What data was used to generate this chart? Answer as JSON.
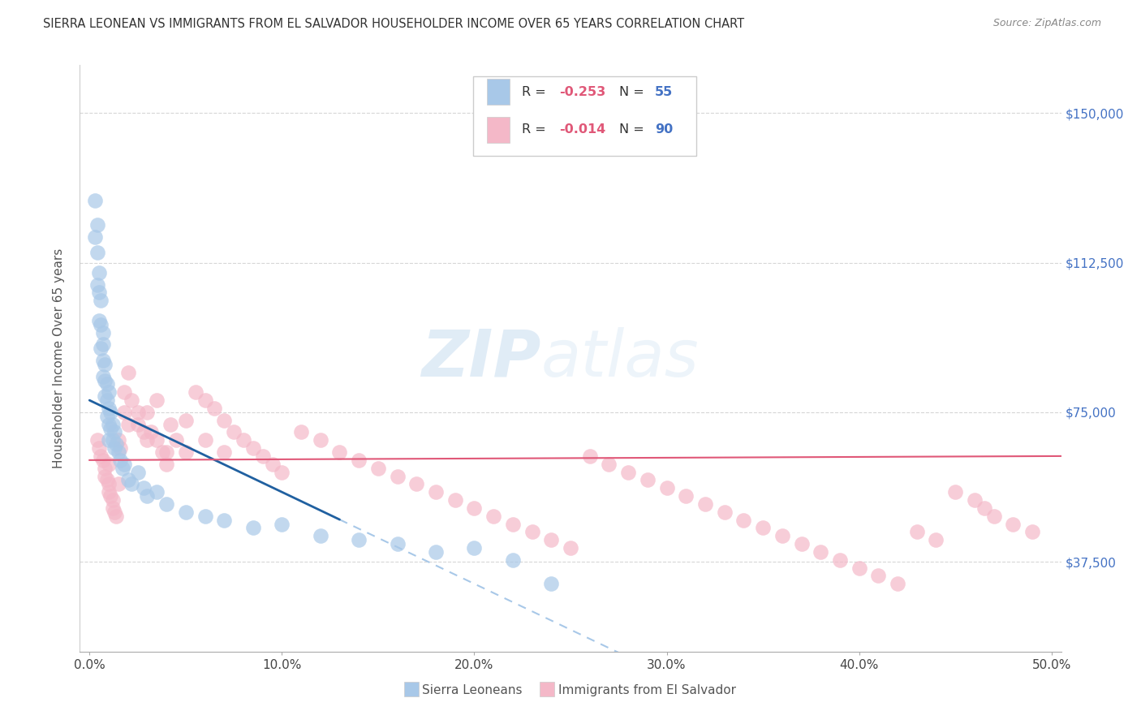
{
  "title": "SIERRA LEONEAN VS IMMIGRANTS FROM EL SALVADOR HOUSEHOLDER INCOME OVER 65 YEARS CORRELATION CHART",
  "source": "Source: ZipAtlas.com",
  "xlabel_ticks": [
    "0.0%",
    "10.0%",
    "20.0%",
    "30.0%",
    "40.0%",
    "50.0%"
  ],
  "xlabel_tick_vals": [
    0.0,
    0.1,
    0.2,
    0.3,
    0.4,
    0.5
  ],
  "ylabel": "Householder Income Over 65 years",
  "ylabel_ticks": [
    "$37,500",
    "$75,000",
    "$112,500",
    "$150,000"
  ],
  "ylabel_tick_vals": [
    37500,
    75000,
    112500,
    150000
  ],
  "xlim": [
    -0.005,
    0.505
  ],
  "ylim": [
    15000,
    162000
  ],
  "legend_blue_r": "-0.253",
  "legend_blue_n": "55",
  "legend_pink_r": "-0.014",
  "legend_pink_n": "90",
  "legend_blue_label": "Sierra Leoneans",
  "legend_pink_label": "Immigrants from El Salvador",
  "blue_color": "#a8c8e8",
  "pink_color": "#f4b8c8",
  "blue_line_color": "#2060a0",
  "pink_line_color": "#e05878",
  "blue_dash_color": "#a8c8e8",
  "watermark_zip": "ZIP",
  "watermark_atlas": "atlas",
  "background_color": "#ffffff",
  "grid_color": "#cccccc",
  "title_color": "#333333",
  "right_tick_color": "#4472c4",
  "legend_r_color": "#e05878",
  "legend_n_color": "#4472c4",
  "legend_text_color": "#333333",
  "blue_x": [
    0.003,
    0.003,
    0.004,
    0.004,
    0.004,
    0.005,
    0.005,
    0.005,
    0.006,
    0.006,
    0.006,
    0.007,
    0.007,
    0.007,
    0.007,
    0.008,
    0.008,
    0.008,
    0.009,
    0.009,
    0.009,
    0.01,
    0.01,
    0.01,
    0.01,
    0.011,
    0.011,
    0.012,
    0.012,
    0.013,
    0.013,
    0.014,
    0.015,
    0.016,
    0.017,
    0.018,
    0.02,
    0.022,
    0.025,
    0.028,
    0.03,
    0.035,
    0.04,
    0.05,
    0.06,
    0.07,
    0.085,
    0.1,
    0.12,
    0.14,
    0.16,
    0.18,
    0.2,
    0.22,
    0.24
  ],
  "blue_y": [
    128000,
    119000,
    122000,
    115000,
    107000,
    110000,
    105000,
    98000,
    103000,
    97000,
    91000,
    95000,
    92000,
    88000,
    84000,
    87000,
    83000,
    79000,
    82000,
    78000,
    74000,
    80000,
    76000,
    72000,
    68000,
    75000,
    71000,
    72000,
    68000,
    70000,
    66000,
    67000,
    65000,
    63000,
    61000,
    62000,
    58000,
    57000,
    60000,
    56000,
    54000,
    55000,
    52000,
    50000,
    49000,
    48000,
    46000,
    47000,
    44000,
    43000,
    42000,
    40000,
    41000,
    38000,
    32000
  ],
  "pink_x": [
    0.004,
    0.005,
    0.006,
    0.007,
    0.008,
    0.008,
    0.009,
    0.01,
    0.01,
    0.011,
    0.012,
    0.012,
    0.013,
    0.014,
    0.015,
    0.015,
    0.016,
    0.018,
    0.02,
    0.022,
    0.025,
    0.028,
    0.03,
    0.032,
    0.035,
    0.038,
    0.04,
    0.042,
    0.045,
    0.05,
    0.055,
    0.06,
    0.065,
    0.07,
    0.075,
    0.08,
    0.085,
    0.09,
    0.095,
    0.1,
    0.11,
    0.12,
    0.13,
    0.14,
    0.15,
    0.16,
    0.17,
    0.18,
    0.19,
    0.2,
    0.21,
    0.22,
    0.23,
    0.24,
    0.25,
    0.26,
    0.27,
    0.28,
    0.29,
    0.3,
    0.31,
    0.32,
    0.33,
    0.34,
    0.35,
    0.36,
    0.37,
    0.38,
    0.39,
    0.4,
    0.41,
    0.42,
    0.43,
    0.44,
    0.45,
    0.46,
    0.465,
    0.47,
    0.48,
    0.49,
    0.01,
    0.02,
    0.03,
    0.04,
    0.018,
    0.025,
    0.035,
    0.05,
    0.06,
    0.07
  ],
  "pink_y": [
    68000,
    66000,
    64000,
    63000,
    61000,
    59000,
    58000,
    57000,
    55000,
    54000,
    53000,
    51000,
    50000,
    49000,
    68000,
    57000,
    66000,
    80000,
    85000,
    78000,
    75000,
    70000,
    75000,
    70000,
    68000,
    65000,
    62000,
    72000,
    68000,
    65000,
    80000,
    78000,
    76000,
    73000,
    70000,
    68000,
    66000,
    64000,
    62000,
    60000,
    70000,
    68000,
    65000,
    63000,
    61000,
    59000,
    57000,
    55000,
    53000,
    51000,
    49000,
    47000,
    45000,
    43000,
    41000,
    64000,
    62000,
    60000,
    58000,
    56000,
    54000,
    52000,
    50000,
    48000,
    46000,
    44000,
    42000,
    40000,
    38000,
    36000,
    34000,
    32000,
    45000,
    43000,
    55000,
    53000,
    51000,
    49000,
    47000,
    45000,
    62000,
    72000,
    68000,
    65000,
    75000,
    72000,
    78000,
    73000,
    68000,
    65000
  ]
}
